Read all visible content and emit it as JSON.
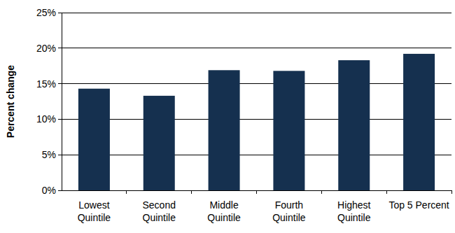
{
  "chart_data": {
    "type": "bar",
    "y_label": "Percent change",
    "categories": [
      "Lowest\nQuintile",
      "Second\nQuintile",
      "Middle\nQuintile",
      "Fourth\nQuintile",
      "Highest\nQuintile",
      "Top 5 Percent"
    ],
    "values": [
      14.3,
      13.3,
      16.9,
      16.8,
      18.3,
      19.2
    ],
    "color": "#15304f",
    "ylim": [
      0,
      25
    ],
    "yticks": [
      {
        "value": 0,
        "label": "0%"
      },
      {
        "value": 5,
        "label": "5%"
      },
      {
        "value": 10,
        "label": "10%"
      },
      {
        "value": 15,
        "label": "15%"
      },
      {
        "value": 20,
        "label": "20%"
      },
      {
        "value": 25,
        "label": "25%"
      }
    ],
    "grid": true
  }
}
